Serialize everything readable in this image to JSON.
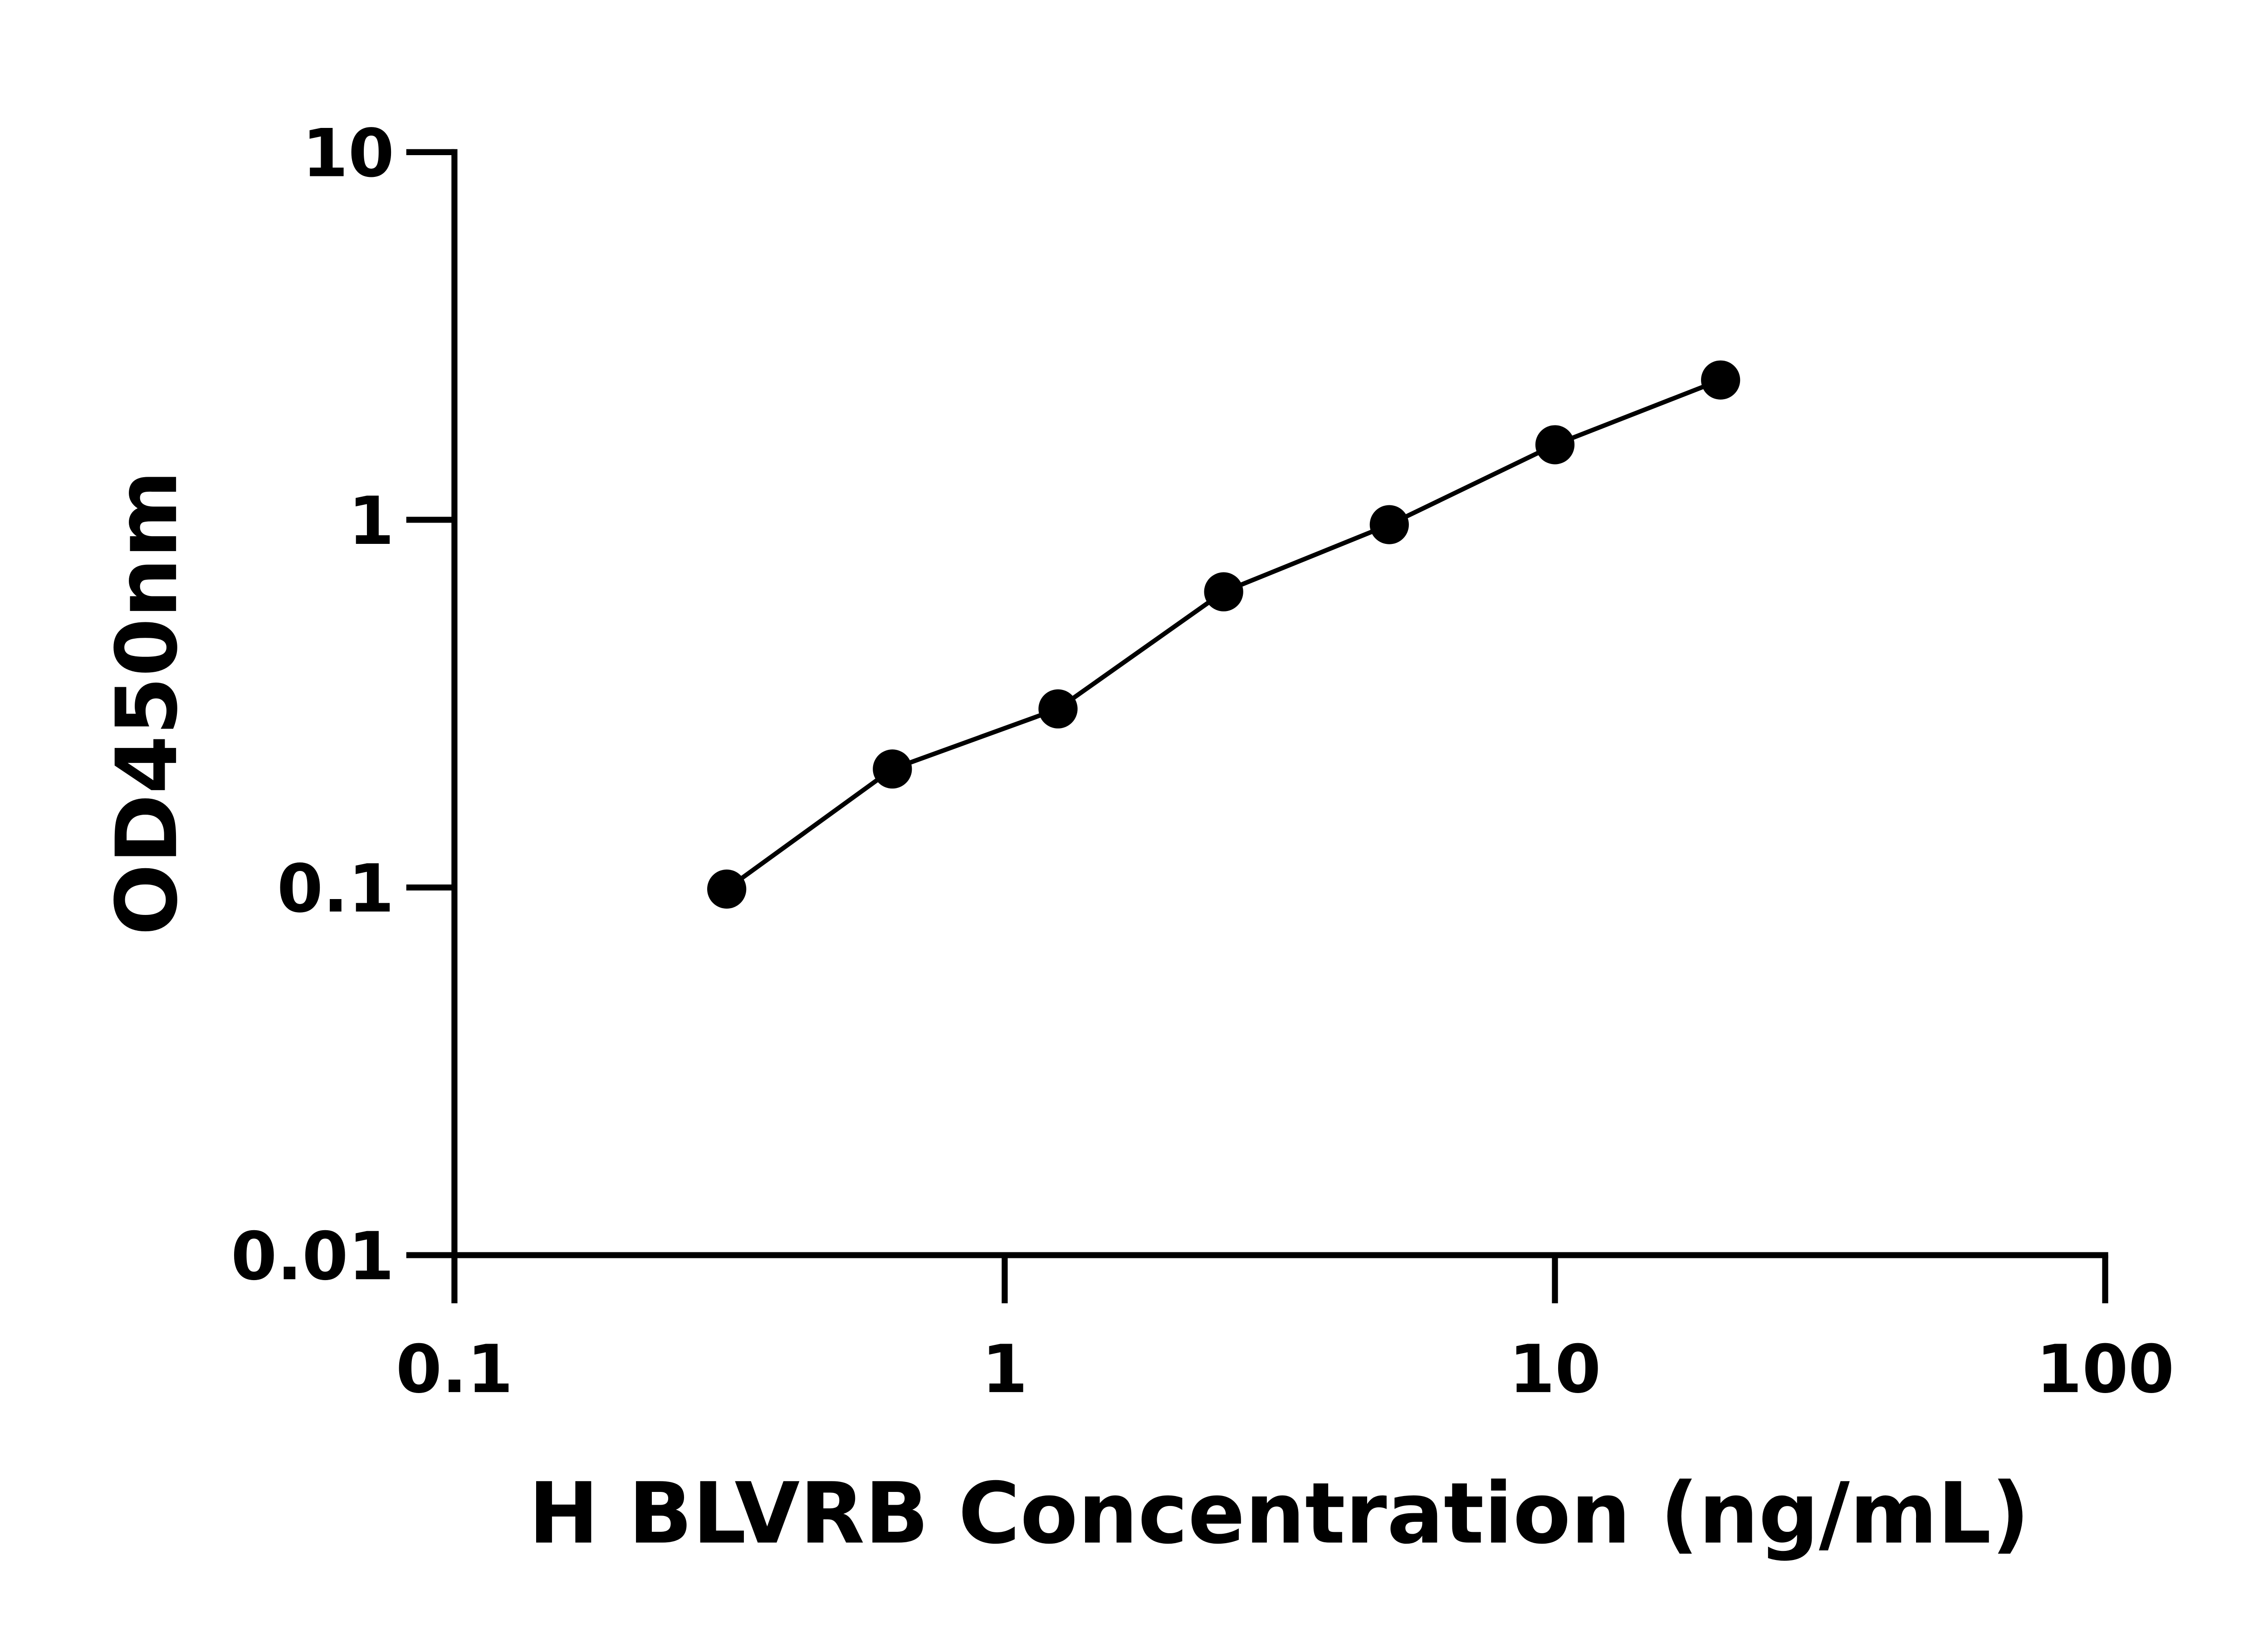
{
  "chart_data": {
    "type": "scatter",
    "title": "",
    "xlabel": "H BLVRB Concentration (ng/mL)",
    "ylabel": "OD450nm",
    "x_scale": "log",
    "y_scale": "log",
    "xlim": [
      0.1,
      100
    ],
    "ylim": [
      0.01,
      10
    ],
    "x_ticks": [
      "0.1",
      "1",
      "10",
      "100"
    ],
    "y_ticks": [
      "0.01",
      "0.1",
      "1",
      "10"
    ],
    "grid": false,
    "fit_line": true,
    "color": "#000000",
    "series": [
      {
        "x": [
          0.3125,
          0.625,
          1.25,
          2.5,
          5,
          10,
          20
        ],
        "y": [
          0.099,
          0.21,
          0.306,
          0.637,
          0.97,
          1.6,
          2.4
        ]
      }
    ]
  }
}
